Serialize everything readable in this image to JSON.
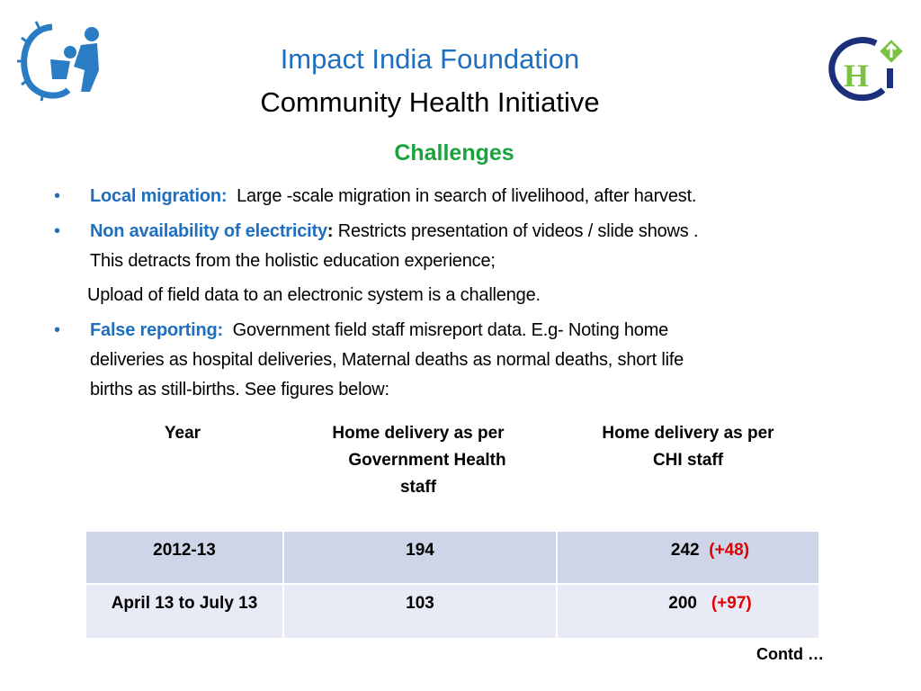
{
  "header": {
    "title": "Impact India Foundation",
    "subtitle": "Community Health Initiative",
    "section": "Challenges",
    "logo_left": "Impact India Foundation logo",
    "logo_right": "CHI"
  },
  "bullets": [
    {
      "keyword": "Local migration:",
      "text": "Large -scale  migration in search of livelihood, after harvest."
    },
    {
      "keyword": "Non availability of electricity",
      "colon": ":",
      "text": "Restricts  presentation of videos / slide shows .",
      "text2": "This detracts from the holistic  education experience;",
      "text3": "Upload of field data to an electronic system is a challenge."
    },
    {
      "keyword": "False reporting:",
      "text": "Government field staff  misreport data.  E.g- Noting home",
      "text2": "deliveries as hospital deliveries, Maternal  deaths as normal deaths, short life",
      "text3": "births as still-births. See figures below:"
    }
  ],
  "table": {
    "headers": [
      "Year",
      "Home delivery as per Government Health staff",
      "Home delivery as per CHI staff"
    ],
    "header_lines": {
      "col2": [
        "Home delivery as per",
        "Government Health",
        "staff"
      ],
      "col3": [
        "Home delivery as per",
        "CHI staff"
      ]
    },
    "rows": [
      {
        "year": "2012-13",
        "govt": "194",
        "chi": "242",
        "diff": "(+48)"
      },
      {
        "year": "April 13 to July 13",
        "govt": "103",
        "chi": "200",
        "diff": "(+97)"
      }
    ]
  },
  "footer": {
    "contd": "Contd …"
  },
  "colors": {
    "title_blue": "#1f6fc0",
    "heading_green": "#1aa33c",
    "diff_red": "#e00000"
  }
}
